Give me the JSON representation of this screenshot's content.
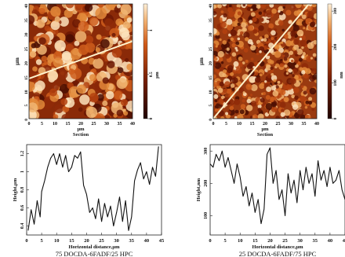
{
  "colors": {
    "afm_dark": "#3a0a00",
    "afm_mid": "#b8400e",
    "afm_light": "#f7d7a6",
    "line": "#111111",
    "scan_line": "#fff2cc"
  },
  "chart_data": [
    {
      "type": "heatmap",
      "xlabel": "μm",
      "ylabel": "μm",
      "section_label": "Section",
      "x_ticks": [
        "0",
        "5",
        "10",
        "15",
        "20",
        "25",
        "30",
        "35",
        "40"
      ],
      "y_ticks": [
        "0",
        "5",
        "10",
        "15",
        "20",
        "25",
        "30",
        "35",
        "40"
      ],
      "colorbar": {
        "ticks": [
          "0",
          "0.5",
          "1"
        ],
        "unit": "μm",
        "range": [
          0,
          1.3
        ]
      },
      "section_line": {
        "from": [
          0,
          14
        ],
        "to": [
          40,
          27
        ]
      }
    },
    {
      "type": "heatmap",
      "xlabel": "μm",
      "ylabel": "μm",
      "section_label": "Section",
      "x_ticks": [
        "0",
        "5",
        "10",
        "15",
        "20",
        "25",
        "30",
        "35",
        "40"
      ],
      "y_ticks": [
        "0",
        "5",
        "10",
        "15",
        "20",
        "25",
        "30",
        "35",
        "40"
      ],
      "colorbar": {
        "ticks": [
          "0",
          "100",
          "200",
          "300"
        ],
        "unit": "nm",
        "range": [
          0,
          320
        ]
      },
      "section_line": {
        "from": [
          0,
          0
        ],
        "to": [
          37,
          40
        ]
      }
    },
    {
      "type": "line",
      "xlabel": "Horizontal distance,μm",
      "ylabel": "Height,μm",
      "xlim": [
        0,
        45
      ],
      "ylim": [
        0.3,
        1.3
      ],
      "x_ticks": [
        0,
        5,
        10,
        15,
        20,
        25,
        30,
        35,
        40,
        45
      ],
      "y_ticks": [
        0.4,
        0.6,
        0.8,
        1.0,
        1.2
      ],
      "y_tick_labels": [
        "0.4",
        "0.6",
        "0.8",
        "1",
        "1.2"
      ],
      "x": [
        0.5,
        1.5,
        2.5,
        3.5,
        4.5,
        5,
        6,
        7,
        8,
        9,
        10,
        11,
        12,
        13,
        14,
        15,
        16,
        17,
        18,
        19,
        20,
        21,
        22,
        23,
        24,
        25,
        26,
        27,
        28,
        29,
        30,
        31,
        32,
        33,
        34,
        35,
        36,
        37,
        38,
        39,
        40,
        41,
        42,
        43,
        44
      ],
      "y": [
        0.35,
        0.58,
        0.42,
        0.68,
        0.5,
        0.78,
        0.9,
        1.05,
        1.15,
        1.2,
        1.08,
        1.2,
        1.05,
        1.18,
        1.0,
        1.05,
        1.18,
        1.15,
        1.22,
        0.85,
        0.75,
        0.55,
        0.6,
        0.48,
        0.7,
        0.45,
        0.65,
        0.5,
        0.62,
        0.4,
        0.55,
        0.72,
        0.45,
        0.68,
        0.35,
        0.5,
        0.9,
        1.02,
        1.1,
        0.92,
        1.0,
        0.86,
        1.05,
        0.95,
        1.28
      ],
      "caption": "75 DOCDA-6FADF/25 HPC"
    },
    {
      "type": "line",
      "xlabel": "Horizontal distance,μm",
      "ylabel": "Height,nm",
      "xlim": [
        0,
        45
      ],
      "ylim": [
        40,
        320
      ],
      "x_ticks": [
        0,
        5,
        10,
        15,
        20,
        25,
        30,
        35,
        40,
        45
      ],
      "y_ticks": [
        100,
        200,
        300
      ],
      "y_tick_labels": [
        "100",
        "200",
        "300"
      ],
      "x": [
        0,
        1,
        2,
        3,
        4,
        5,
        6,
        7,
        8,
        9,
        10,
        11,
        12,
        13,
        14,
        15,
        16,
        17,
        18,
        19,
        20,
        21,
        22,
        23,
        24,
        25,
        26,
        27,
        28,
        29,
        30,
        31,
        32,
        33,
        34,
        35,
        36,
        37,
        38,
        39,
        40,
        41,
        42,
        43,
        44,
        45
      ],
      "y": [
        260,
        250,
        290,
        270,
        300,
        250,
        280,
        240,
        200,
        260,
        220,
        160,
        190,
        130,
        170,
        110,
        150,
        75,
        120,
        290,
        310,
        200,
        240,
        150,
        180,
        100,
        230,
        170,
        210,
        140,
        240,
        180,
        250,
        200,
        230,
        160,
        270,
        210,
        240,
        190,
        250,
        200,
        210,
        240,
        180,
        150
      ],
      "caption": "25 DOCDA-6FADF/75 HPC"
    }
  ]
}
